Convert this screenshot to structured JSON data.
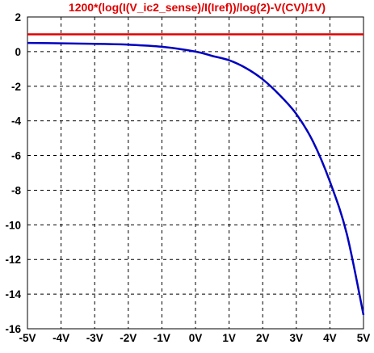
{
  "chart_data": {
    "type": "line",
    "title": "1200*(log(I(V_ic2_sense)/I(Iref))/log(2)-V(CV)/1V)",
    "xlabel": "",
    "ylabel": "",
    "xlim": [
      -5,
      5
    ],
    "ylim": [
      -16,
      2
    ],
    "x_ticks": [
      -5,
      -4,
      -3,
      -2,
      -1,
      0,
      1,
      2,
      3,
      4,
      5
    ],
    "x_tick_labels": [
      "-5V",
      "-4V",
      "-3V",
      "-2V",
      "-1V",
      "0V",
      "1V",
      "2V",
      "3V",
      "4V",
      "5V"
    ],
    "y_ticks": [
      2,
      0,
      -2,
      -4,
      -6,
      -8,
      -10,
      -12,
      -14,
      -16
    ],
    "y_tick_labels": [
      "2",
      "0",
      "-2",
      "-4",
      "-6",
      "-8",
      "-10",
      "-12",
      "-14",
      "-16"
    ],
    "grid": true,
    "grid_style": "dashed",
    "series": [
      {
        "color": "#e00000",
        "x": [
          -5,
          5
        ],
        "y": [
          1.0,
          1.0
        ]
      },
      {
        "color": "#0000c0",
        "x": [
          -5,
          -4,
          -3,
          -2,
          -1,
          0,
          0.5,
          1,
          1.5,
          2,
          2.5,
          3,
          3.5,
          4,
          4.5,
          5
        ],
        "y": [
          0.5,
          0.48,
          0.45,
          0.4,
          0.28,
          0.0,
          -0.25,
          -0.5,
          -0.95,
          -1.6,
          -2.5,
          -3.6,
          -5.2,
          -7.5,
          -10.5,
          -15.2
        ]
      }
    ]
  }
}
